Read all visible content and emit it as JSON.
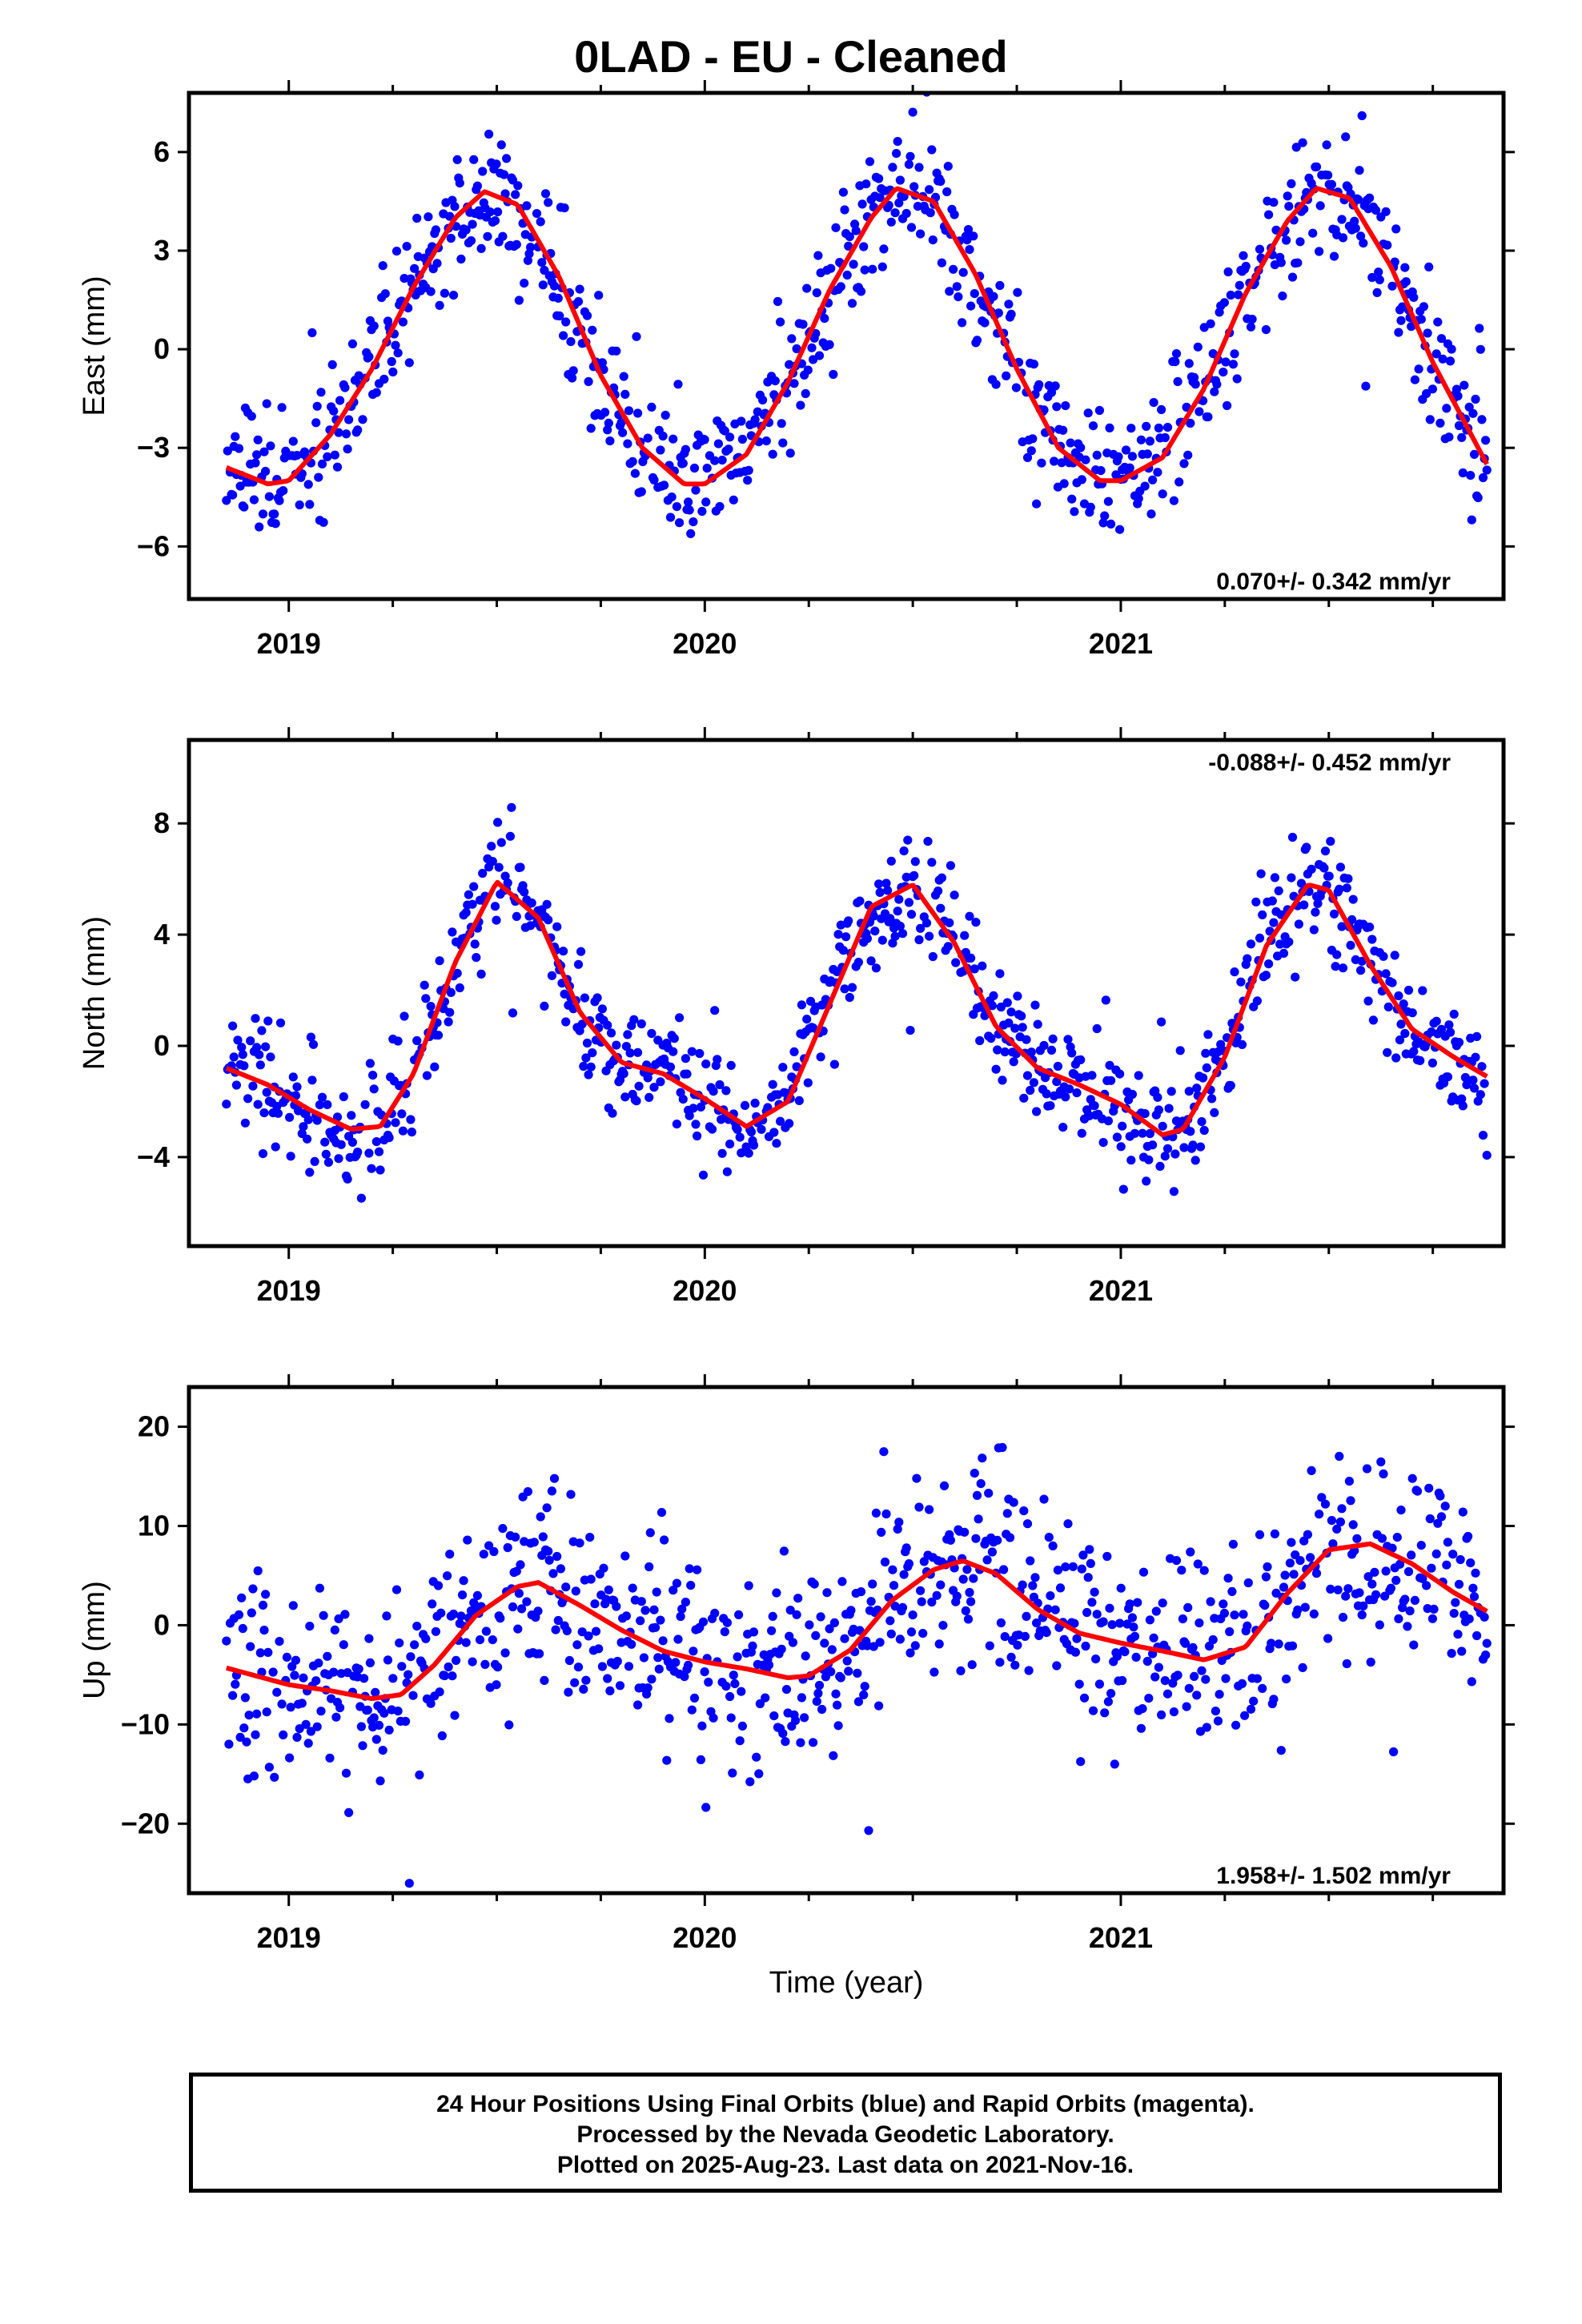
{
  "title": "0LAD  - EU - Cleaned",
  "x_axis_label": "Time (year)",
  "footer": {
    "line1": "24 Hour Positions Using Final Orbits (blue) and Rapid Orbits (magenta).",
    "line2": "Processed by the Nevada Geodetic Laboratory.",
    "line3": "Plotted on 2025-Aug-23. Last data on 2021-Nov-16."
  },
  "colors": {
    "points": "#0000ff",
    "fit": "#ff0000",
    "axes": "#000000"
  },
  "chart_data": [
    {
      "type": "scatter",
      "name": "east",
      "ylabel": "East (mm)",
      "rate_text": "0.070+/- 0.342 mm/yr",
      "rate_position": "bottom-right",
      "xlim": [
        2018.76,
        2021.92
      ],
      "ylim": [
        -7.6,
        7.8
      ],
      "yticks": [
        -6,
        -3,
        0,
        3,
        6
      ],
      "xticks": [
        2019,
        2020,
        2021
      ],
      "series": [
        {
          "kind": "points",
          "color": "blue",
          "model": {
            "mean": 0.3,
            "amp": 4.55,
            "phase": 2019.21,
            "noise": 1.05,
            "seed": 11
          },
          "x_range": [
            2018.85,
            2021.88
          ]
        },
        {
          "kind": "fit",
          "color": "red",
          "x": [
            2018.85,
            2018.95,
            2019.0,
            2019.1,
            2019.2,
            2019.3,
            2019.4,
            2019.47,
            2019.55,
            2019.65,
            2019.75,
            2019.85,
            2019.95,
            2020.0,
            2020.1,
            2020.2,
            2020.3,
            2020.4,
            2020.46,
            2020.55,
            2020.65,
            2020.75,
            2020.85,
            2020.95,
            2021.0,
            2021.1,
            2021.2,
            2021.3,
            2021.4,
            2021.47,
            2021.55,
            2021.65,
            2021.75,
            2021.88
          ],
          "y": [
            -3.6,
            -4.1,
            -4.0,
            -2.6,
            -0.6,
            1.9,
            4.0,
            4.8,
            4.4,
            2.2,
            -0.8,
            -3.0,
            -4.1,
            -4.1,
            -3.2,
            -1.0,
            1.8,
            4.0,
            4.9,
            4.5,
            2.3,
            -0.6,
            -3.0,
            -4.0,
            -4.0,
            -3.3,
            -1.2,
            1.7,
            3.9,
            4.9,
            4.6,
            2.5,
            -0.4,
            -3.5
          ]
        }
      ]
    },
    {
      "type": "scatter",
      "name": "north",
      "ylabel": "North (mm)",
      "rate_text": "-0.088+/- 0.452 mm/yr",
      "rate_position": "top-right",
      "xlim": [
        2018.76,
        2021.92
      ],
      "ylim": [
        -7.2,
        11.0
      ],
      "yticks": [
        -4,
        0,
        4,
        8
      ],
      "xticks": [
        2019,
        2020,
        2021
      ],
      "series": [
        {
          "kind": "points",
          "color": "blue",
          "model": {
            "noise": 1.0,
            "seed": 23
          },
          "x_range": [
            2018.85,
            2021.88
          ]
        },
        {
          "kind": "fit",
          "color": "red",
          "x": [
            2018.85,
            2018.95,
            2019.05,
            2019.15,
            2019.22,
            2019.3,
            2019.4,
            2019.5,
            2019.6,
            2019.7,
            2019.8,
            2019.9,
            2020.0,
            2020.1,
            2020.2,
            2020.3,
            2020.4,
            2020.5,
            2020.6,
            2020.7,
            2020.8,
            2020.9,
            2021.0,
            2021.1,
            2021.15,
            2021.25,
            2021.35,
            2021.45,
            2021.5,
            2021.6,
            2021.7,
            2021.8,
            2021.88
          ],
          "y": [
            -0.8,
            -1.4,
            -2.3,
            -3.0,
            -2.9,
            -1.0,
            3.0,
            5.9,
            4.6,
            1.2,
            -0.6,
            -1.0,
            -1.9,
            -2.9,
            -2.0,
            1.5,
            5.0,
            5.8,
            3.7,
            0.7,
            -0.8,
            -1.4,
            -2.1,
            -3.2,
            -3.0,
            -0.4,
            3.6,
            5.8,
            5.6,
            2.9,
            0.6,
            -0.4,
            -1.1
          ]
        }
      ]
    },
    {
      "type": "scatter",
      "name": "up",
      "ylabel": "Up (mm)",
      "rate_text": "1.958+/- 1.502 mm/yr",
      "rate_position": "bottom-right",
      "xlim": [
        2018.76,
        2021.92
      ],
      "ylim": [
        -27,
        24
      ],
      "yticks": [
        -20,
        -10,
        0,
        10,
        20
      ],
      "xticks": [
        2019,
        2020,
        2021
      ],
      "series": [
        {
          "kind": "points",
          "color": "blue",
          "model": {
            "noise": 5.0,
            "seed": 37
          },
          "x_range": [
            2018.85,
            2021.88
          ]
        },
        {
          "kind": "fit",
          "color": "red",
          "x": [
            2018.85,
            2019.0,
            2019.1,
            2019.2,
            2019.27,
            2019.35,
            2019.45,
            2019.55,
            2019.6,
            2019.7,
            2019.8,
            2019.9,
            2020.0,
            2020.1,
            2020.2,
            2020.25,
            2020.35,
            2020.45,
            2020.55,
            2020.62,
            2020.7,
            2020.8,
            2020.9,
            2021.0,
            2021.1,
            2021.2,
            2021.3,
            2021.4,
            2021.5,
            2021.6,
            2021.7,
            2021.8,
            2021.88
          ],
          "y": [
            -4.3,
            -6.0,
            -6.6,
            -7.4,
            -7.0,
            -4.0,
            1.0,
            3.9,
            4.3,
            2.0,
            -0.5,
            -2.6,
            -3.7,
            -4.4,
            -5.3,
            -5.1,
            -2.5,
            2.5,
            5.6,
            6.5,
            5.2,
            1.6,
            -0.8,
            -1.8,
            -2.6,
            -3.5,
            -2.2,
            3.2,
            7.6,
            8.2,
            6.2,
            3.3,
            1.4
          ]
        }
      ]
    }
  ]
}
